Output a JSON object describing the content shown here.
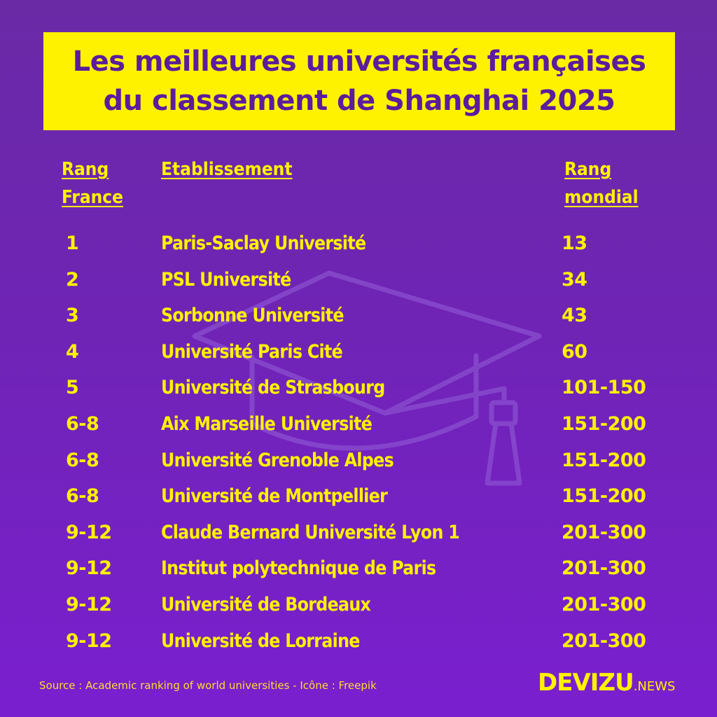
{
  "title": {
    "line1": "Les meilleures universités françaises",
    "line2": "du classement de Shanghai 2025"
  },
  "headers": {
    "rank_france_line1": "Rang",
    "rank_france_line2": "France",
    "establishment": "Etablissement",
    "rank_world_line1": "Rang",
    "rank_world_line2": "mondial"
  },
  "rows": [
    {
      "rank_france": "1",
      "name": "Paris-Saclay Université",
      "rank_world": "13"
    },
    {
      "rank_france": "2",
      "name": "PSL Université",
      "rank_world": "34"
    },
    {
      "rank_france": "3",
      "name": "Sorbonne Université",
      "rank_world": "43"
    },
    {
      "rank_france": "4",
      "name": "Université Paris Cité",
      "rank_world": "60"
    },
    {
      "rank_france": "5",
      "name": "Université de Strasbourg",
      "rank_world": "101-150"
    },
    {
      "rank_france": "6-8",
      "name": "Aix Marseille Université",
      "rank_world": "151-200"
    },
    {
      "rank_france": "6-8",
      "name": "Université Grenoble Alpes",
      "rank_world": "151-200"
    },
    {
      "rank_france": "6-8",
      "name": "Université de Montpellier",
      "rank_world": "151-200"
    },
    {
      "rank_france": "9-12",
      "name": "Claude Bernard Université Lyon 1",
      "rank_world": "201-300"
    },
    {
      "rank_france": "9-12",
      "name": "Institut polytechnique de Paris",
      "rank_world": "201-300"
    },
    {
      "rank_france": "9-12",
      "name": "Université de Bordeaux",
      "rank_world": "201-300"
    },
    {
      "rank_france": "9-12",
      "name": "Université de Lorraine",
      "rank_world": "201-300"
    }
  ],
  "footer": {
    "source": "Source : Academic ranking of world universities - Icône : Freepik",
    "brand_main": "DEVIZU",
    "brand_sub": ".NEWS"
  },
  "colors": {
    "background_top": "#6a2aa6",
    "background_bottom": "#7a1fcf",
    "accent_yellow": "#fff200",
    "title_text": "#5b1c9e"
  },
  "icons": {
    "background_icon": "graduation-cap-icon"
  }
}
